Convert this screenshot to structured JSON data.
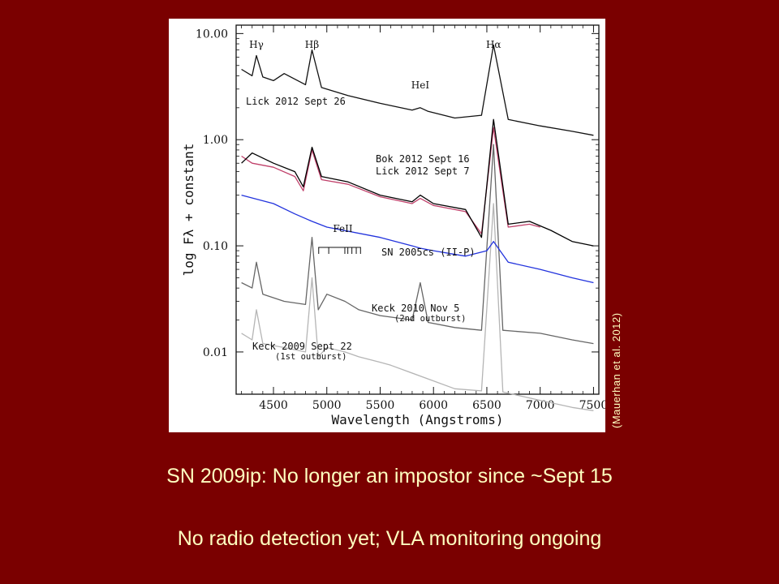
{
  "slide": {
    "caption_line1": "SN 2009ip: No longer an impostor since ~Sept 15",
    "caption_line2": "No radio detection yet; VLA monitoring ongoing",
    "credit": "(Mauerhan  et al. 2012)"
  },
  "chart_data": {
    "type": "line",
    "xlabel": "Wavelength (Angstroms)",
    "ylabel": "log Fλ + constant",
    "xlim": [
      4150,
      7550
    ],
    "ylim": [
      0.004,
      12
    ],
    "y_scale": "log",
    "x_ticks": [
      4500,
      5000,
      5500,
      6000,
      6500,
      7000,
      7500
    ],
    "y_ticks": [
      {
        "value": 10,
        "label": "10.00"
      },
      {
        "value": 1,
        "label": "1.00"
      },
      {
        "value": 0.1,
        "label": "0.10"
      },
      {
        "value": 0.01,
        "label": "0.01"
      }
    ],
    "line_labels": [
      {
        "text": "Hγ",
        "x": 4340
      },
      {
        "text": "Hβ",
        "x": 4861
      },
      {
        "text": "Hα",
        "x": 6563
      },
      {
        "text": "HeI",
        "x": 5876
      },
      {
        "text": "FeII",
        "x": 5150
      }
    ],
    "series": [
      {
        "name": "Lick 2012 Sept 26",
        "color": "#111111",
        "x": [
          4200,
          4300,
          4340,
          4400,
          4500,
          4600,
          4800,
          4861,
          4950,
          5200,
          5500,
          5800,
          5876,
          5950,
          6200,
          6450,
          6563,
          6700,
          7000,
          7300,
          7500
        ],
        "y": [
          4.6,
          4.0,
          6.2,
          3.9,
          3.6,
          4.2,
          3.3,
          7.0,
          3.1,
          2.6,
          2.2,
          1.9,
          2.0,
          1.85,
          1.6,
          1.7,
          7.8,
          1.55,
          1.35,
          1.2,
          1.1
        ]
      },
      {
        "name": "Bok 2012 Sept 16",
        "color": "#000000",
        "x": [
          4200,
          4300,
          4500,
          4700,
          4780,
          4861,
          4950,
          5200,
          5500,
          5800,
          5876,
          6000,
          6300,
          6450,
          6563,
          6700,
          6900,
          7100,
          7300,
          7500
        ],
        "y": [
          0.6,
          0.75,
          0.6,
          0.5,
          0.36,
          0.85,
          0.45,
          0.4,
          0.3,
          0.26,
          0.3,
          0.25,
          0.22,
          0.12,
          1.55,
          0.16,
          0.17,
          0.14,
          0.11,
          0.1
        ]
      },
      {
        "name": "Lick 2012 Sept 7",
        "color": "#c0406a",
        "x": [
          4200,
          4300,
          4500,
          4700,
          4780,
          4861,
          4950,
          5200,
          5500,
          5800,
          5876,
          6000,
          6300,
          6450,
          6563,
          6700,
          6900,
          7000
        ],
        "y": [
          0.7,
          0.6,
          0.55,
          0.45,
          0.33,
          0.8,
          0.42,
          0.38,
          0.29,
          0.25,
          0.28,
          0.24,
          0.21,
          0.13,
          1.3,
          0.15,
          0.16,
          0.15
        ]
      },
      {
        "name": "SN 2005cs (II-P)",
        "color": "#2233dd",
        "x": [
          4200,
          4500,
          4700,
          4861,
          5000,
          5500,
          5800,
          5876,
          6000,
          6300,
          6500,
          6563,
          6700,
          7000,
          7300,
          7500
        ],
        "y": [
          0.3,
          0.25,
          0.2,
          0.17,
          0.15,
          0.12,
          0.1,
          0.095,
          0.09,
          0.08,
          0.09,
          0.11,
          0.07,
          0.06,
          0.05,
          0.045
        ]
      },
      {
        "name": "Keck 2010 Nov 5",
        "color": "#666666",
        "x": [
          4200,
          4300,
          4340,
          4400,
          4600,
          4800,
          4861,
          4920,
          5000,
          5170,
          5300,
          5500,
          5800,
          5876,
          5950,
          6200,
          6450,
          6563,
          6650,
          7000,
          7300,
          7500
        ],
        "y": [
          0.045,
          0.04,
          0.07,
          0.035,
          0.03,
          0.028,
          0.12,
          0.025,
          0.035,
          0.03,
          0.025,
          0.022,
          0.02,
          0.045,
          0.019,
          0.017,
          0.016,
          0.9,
          0.016,
          0.015,
          0.013,
          0.012
        ]
      },
      {
        "name": "Keck 2009 Sept 22",
        "color": "#b5b5b5",
        "x": [
          4200,
          4300,
          4340,
          4400,
          4600,
          4800,
          4861,
          4920,
          5000,
          5170,
          5300,
          5500,
          5600,
          6200,
          6450,
          6563,
          6650,
          7000,
          7300,
          7500
        ],
        "y": [
          0.015,
          0.013,
          0.025,
          0.012,
          0.011,
          0.01,
          0.05,
          0.009,
          0.011,
          0.01,
          0.009,
          0.008,
          0.0075,
          0.0045,
          0.0043,
          0.25,
          0.0042,
          0.0035,
          0.003,
          0.0028
        ]
      }
    ],
    "annotations": [
      {
        "text": "Lick 2012 Sept 26",
        "sub": ""
      },
      {
        "text": "Bok 2012 Sept 16",
        "sub": ""
      },
      {
        "text": "Lick 2012 Sept 7",
        "sub": ""
      },
      {
        "text": "SN 2005cs (II-P)",
        "sub": ""
      },
      {
        "text": "Keck 2010 Nov 5",
        "sub": "(2nd outburst)"
      },
      {
        "text": "Keck 2009 Sept 22",
        "sub": "(1st outburst)"
      }
    ]
  }
}
